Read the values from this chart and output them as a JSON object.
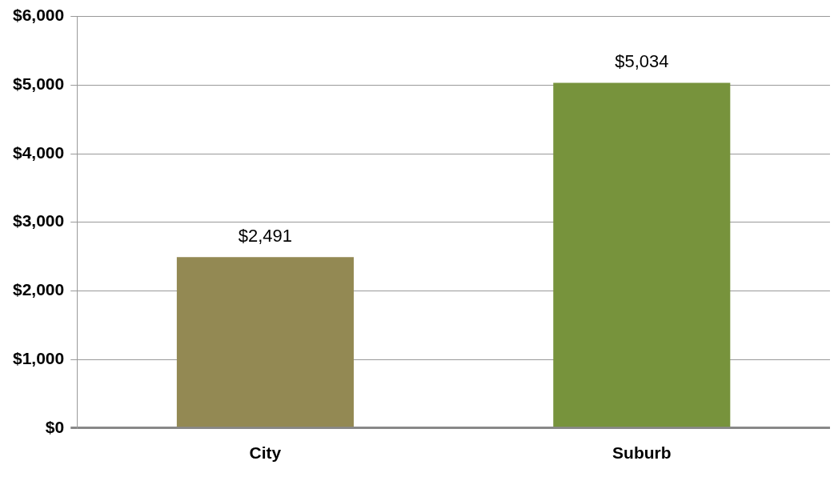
{
  "chart_data": {
    "type": "bar",
    "categories": [
      "City",
      "Suburb"
    ],
    "values": [
      2491,
      5034
    ],
    "colors": [
      "#938953",
      "#77933c"
    ],
    "value_labels": [
      "$2,491",
      "$5,034"
    ],
    "ylim": [
      0,
      6000
    ],
    "yticks": [
      {
        "value": 0,
        "label": "$0"
      },
      {
        "value": 1000,
        "label": "$1,000"
      },
      {
        "value": 2000,
        "label": "$2,000"
      },
      {
        "value": 3000,
        "label": "$3,000"
      },
      {
        "value": 4000,
        "label": "$4,000"
      },
      {
        "value": 5000,
        "label": "$5,000"
      },
      {
        "value": 6000,
        "label": "$6,000"
      }
    ],
    "grid": "y"
  }
}
